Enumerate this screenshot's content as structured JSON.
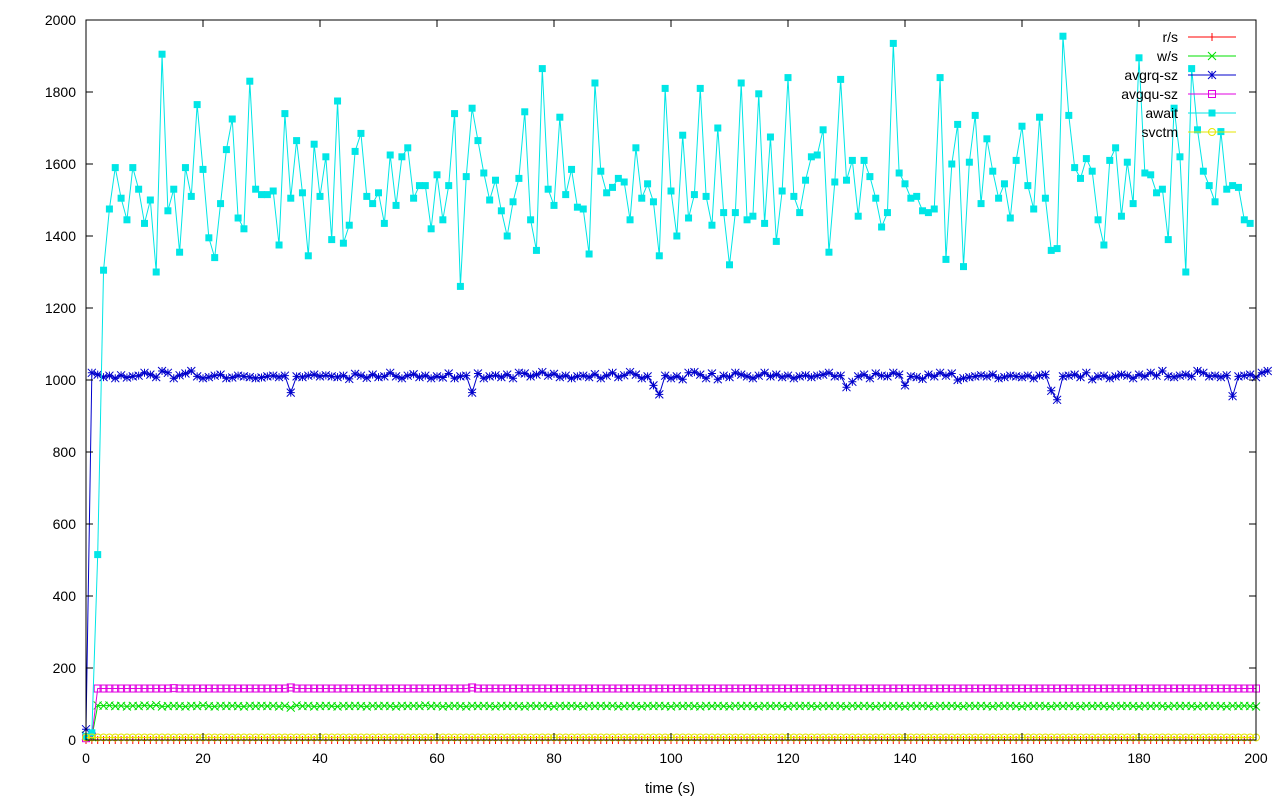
{
  "chart_data": {
    "type": "line",
    "title": "",
    "xlabel": "time (s)",
    "ylabel": "",
    "xlim": [
      0,
      200
    ],
    "ylim": [
      0,
      2000
    ],
    "xticks": [
      0,
      20,
      40,
      60,
      80,
      100,
      120,
      140,
      160,
      180,
      200
    ],
    "yticks": [
      0,
      200,
      400,
      600,
      800,
      1000,
      1200,
      1400,
      1600,
      1800,
      2000
    ],
    "grid": false,
    "legend_position": "top-right",
    "series": [
      {
        "name": "r/s",
        "color": "#ff0000",
        "marker": "plus",
        "start": 0,
        "step": 1,
        "values": [
          0,
          0,
          0,
          0,
          0,
          0,
          0,
          0,
          0,
          0,
          0,
          0,
          0,
          0,
          0,
          0,
          0,
          0,
          0,
          0,
          0,
          0,
          0,
          0,
          0,
          0,
          0,
          0,
          0,
          0,
          0,
          0,
          0,
          0,
          0,
          0,
          0,
          0,
          0,
          0,
          0,
          0,
          0,
          0,
          0,
          0,
          0,
          0,
          0,
          0,
          0,
          0,
          0,
          0,
          0,
          0,
          0,
          0,
          0,
          0,
          0,
          0,
          0,
          0,
          0,
          0,
          0,
          0,
          0,
          0,
          0,
          0,
          0,
          0,
          0,
          0,
          0,
          0,
          0,
          0,
          0,
          0,
          0,
          0,
          0,
          0,
          0,
          0,
          0,
          0,
          0,
          0,
          0,
          0,
          0,
          0,
          0,
          0,
          0,
          0,
          0,
          0,
          0,
          0,
          0,
          0,
          0,
          0,
          0,
          0,
          0,
          0,
          0,
          0,
          0,
          0,
          0,
          0,
          0,
          0,
          0,
          0,
          0,
          0,
          0,
          0,
          0,
          0,
          0,
          0,
          0,
          0,
          0,
          0,
          0,
          0,
          0,
          0,
          0,
          0,
          0,
          0,
          0,
          0,
          0,
          0,
          0,
          0,
          0,
          0,
          0,
          0,
          0,
          0,
          0,
          0,
          0,
          0,
          0,
          0,
          0,
          0,
          0,
          0,
          0,
          0,
          0,
          0,
          0,
          0,
          0,
          0,
          0,
          0,
          0,
          0,
          0,
          0,
          0,
          0,
          0,
          0,
          0,
          0,
          0,
          0,
          0,
          0,
          0,
          0,
          0,
          0,
          0,
          0,
          0,
          0,
          0,
          0,
          0,
          0
        ]
      },
      {
        "name": "w/s",
        "color": "#00e000",
        "marker": "cross",
        "start": 0,
        "step": 1,
        "values": [
          12,
          8,
          96,
          95,
          96,
          94,
          95,
          93,
          95,
          94,
          96,
          94,
          97,
          93,
          94,
          95,
          94,
          93,
          95,
          94,
          96,
          94,
          93,
          95,
          94,
          95,
          94,
          93,
          95,
          94,
          95,
          94,
          95,
          93,
          95,
          90,
          96,
          94,
          95,
          93,
          94,
          95,
          94,
          93,
          95,
          94,
          95,
          94,
          93,
          95,
          94,
          95,
          94,
          93,
          95,
          94,
          95,
          94,
          96,
          94,
          95,
          93,
          94,
          95,
          94,
          93,
          95,
          94,
          95,
          94,
          93,
          95,
          94,
          95,
          94,
          93,
          95,
          94,
          95,
          94,
          93,
          95,
          94,
          95,
          94,
          93,
          95,
          94,
          95,
          94,
          95,
          93,
          94,
          95,
          94,
          93,
          95,
          94,
          95,
          94,
          93,
          95,
          94,
          95,
          94,
          93,
          95,
          94,
          95,
          94,
          93,
          95,
          94,
          95,
          94,
          93,
          95,
          94,
          95,
          94,
          93,
          95,
          94,
          95,
          94,
          93,
          95,
          94,
          95,
          94,
          93,
          95,
          94,
          95,
          94,
          93,
          95,
          94,
          95,
          94,
          93,
          95,
          94,
          95,
          94,
          93,
          95,
          94,
          95,
          94,
          93,
          95,
          94,
          95,
          94,
          93,
          95,
          94,
          95,
          94,
          93,
          95,
          94,
          95,
          94,
          93,
          95,
          94,
          95,
          94,
          93,
          95,
          94,
          95,
          94,
          93,
          95,
          94,
          95,
          94,
          93,
          95,
          94,
          95,
          94,
          93,
          95,
          94,
          95,
          94,
          93,
          95,
          94,
          95,
          94,
          93,
          95,
          94,
          95,
          94,
          93
        ]
      },
      {
        "name": "avgrq-sz",
        "color": "#0000cc",
        "marker": "star",
        "start": 0,
        "step": 1,
        "values": [
          30,
          1020,
          1015,
          1008,
          1012,
          1005,
          1013,
          1007,
          1010,
          1012,
          1020,
          1015,
          1008,
          1025,
          1020,
          1005,
          1013,
          1018,
          1025,
          1010,
          1005,
          1008,
          1012,
          1015,
          1005,
          1007,
          1012,
          1010,
          1008,
          1005,
          1007,
          1010,
          1012,
          1008,
          1012,
          965,
          1010,
          1008,
          1012,
          1015,
          1010,
          1013,
          1010,
          1008,
          1012,
          1003,
          1017,
          1012,
          1006,
          1015,
          1008,
          1010,
          1020,
          1010,
          1005,
          1012,
          1016,
          1008,
          1012,
          1005,
          1010,
          1007,
          1018,
          1005,
          1010,
          1012,
          965,
          1018,
          1005,
          1010,
          1013,
          1008,
          1015,
          1005,
          1020,
          1018,
          1010,
          1015,
          1022,
          1012,
          1017,
          1008,
          1012,
          1005,
          1010,
          1012,
          1008,
          1016,
          1005,
          1012,
          1020,
          1008,
          1013,
          1022,
          1015,
          1005,
          1010,
          985,
          960,
          1012,
          1005,
          1010,
          1002,
          1020,
          1022,
          1015,
          1005,
          1018,
          1002,
          1012,
          1008,
          1020,
          1015,
          1010,
          1005,
          1012,
          1020,
          1010,
          1015,
          1008,
          1012,
          1005,
          1010,
          1013,
          1008,
          1012,
          1015,
          1020,
          1010,
          1012,
          980,
          995,
          1010,
          1015,
          1005,
          1018,
          1012,
          1010,
          1020,
          1015,
          985,
          1010,
          1008,
          1003,
          1015,
          1010,
          1020,
          1012,
          1018,
          1000,
          1005,
          1008,
          1010,
          1013,
          1010,
          1015,
          1005,
          1008,
          1012,
          1010,
          1008,
          1012,
          1005,
          1012,
          1015,
          970,
          945,
          1010,
          1012,
          1015,
          1008,
          1020,
          1002,
          1010,
          1012,
          1005,
          1010,
          1015,
          1012,
          1005,
          1015,
          1010,
          1020,
          1012,
          1025,
          1010,
          1008,
          1012,
          1015,
          1010,
          1025,
          1020,
          1010,
          1012,
          1008,
          1013,
          955,
          1010,
          1012,
          1015,
          1008,
          1020,
          1025
        ]
      },
      {
        "name": "avgqu-sz",
        "color": "#e000e0",
        "marker": "square",
        "start": 0,
        "step": 1,
        "values": [
          5,
          10,
          143,
          143,
          143,
          143,
          143,
          143,
          143,
          143,
          143,
          143,
          143,
          143,
          143,
          144,
          143,
          143,
          143,
          143,
          143,
          143,
          143,
          143,
          143,
          143,
          143,
          143,
          143,
          143,
          143,
          143,
          143,
          143,
          143,
          146,
          143,
          143,
          143,
          143,
          143,
          143,
          143,
          143,
          143,
          143,
          143,
          143,
          143,
          143,
          143,
          143,
          143,
          143,
          143,
          143,
          143,
          143,
          143,
          143,
          143,
          143,
          143,
          143,
          143,
          143,
          146,
          143,
          143,
          143,
          143,
          143,
          143,
          143,
          143,
          143,
          143,
          143,
          143,
          143,
          143,
          143,
          143,
          143,
          143,
          143,
          143,
          143,
          143,
          143,
          143,
          143,
          143,
          143,
          143,
          143,
          143,
          143,
          143,
          143,
          143,
          143,
          143,
          143,
          143,
          143,
          143,
          143,
          143,
          143,
          143,
          143,
          143,
          143,
          143,
          143,
          143,
          143,
          143,
          143,
          143,
          143,
          143,
          143,
          143,
          143,
          143,
          143,
          143,
          143,
          143,
          143,
          143,
          143,
          143,
          143,
          143,
          143,
          143,
          143,
          143,
          143,
          143,
          143,
          143,
          143,
          143,
          143,
          143,
          143,
          143,
          143,
          143,
          143,
          143,
          143,
          143,
          143,
          143,
          143,
          143,
          143,
          143,
          143,
          143,
          143,
          143,
          143,
          143,
          143,
          143,
          143,
          143,
          143,
          143,
          143,
          143,
          143,
          143,
          143,
          143,
          143,
          143,
          143,
          143,
          143,
          143,
          143,
          143,
          143,
          143,
          143,
          143,
          143,
          143,
          143,
          143,
          143,
          143,
          143,
          143
        ]
      },
      {
        "name": "await",
        "color": "#00e6e6",
        "marker": "filled-square",
        "start": 0,
        "step": 1,
        "values": [
          10,
          20,
          515,
          1305,
          1475,
          1590,
          1505,
          1445,
          1590,
          1530,
          1435,
          1500,
          1300,
          1905,
          1470,
          1530,
          1355,
          1590,
          1510,
          1765,
          1585,
          1395,
          1340,
          1490,
          1640,
          1725,
          1450,
          1420,
          1830,
          1530,
          1515,
          1515,
          1525,
          1375,
          1740,
          1505,
          1665,
          1520,
          1345,
          1655,
          1510,
          1620,
          1390,
          1775,
          1380,
          1430,
          1635,
          1685,
          1510,
          1490,
          1520,
          1435,
          1625,
          1485,
          1620,
          1645,
          1505,
          1540,
          1540,
          1420,
          1570,
          1445,
          1540,
          1740,
          1260,
          1565,
          1755,
          1665,
          1575,
          1500,
          1555,
          1470,
          1400,
          1495,
          1560,
          1745,
          1445,
          1360,
          1865,
          1530,
          1485,
          1730,
          1515,
          1585,
          1480,
          1475,
          1350,
          1825,
          1580,
          1520,
          1535,
          1560,
          1550,
          1445,
          1645,
          1505,
          1545,
          1495,
          1345,
          1810,
          1525,
          1400,
          1680,
          1450,
          1515,
          1810,
          1510,
          1430,
          1700,
          1465,
          1320,
          1465,
          1825,
          1445,
          1455,
          1795,
          1435,
          1675,
          1385,
          1525,
          1840,
          1510,
          1465,
          1555,
          1620,
          1625,
          1695,
          1355,
          1550,
          1835,
          1555,
          1610,
          1455,
          1610,
          1565,
          1505,
          1425,
          1465,
          1935,
          1575,
          1545,
          1505,
          1510,
          1470,
          1465,
          1475,
          1840,
          1335,
          1600,
          1710,
          1315,
          1605,
          1735,
          1490,
          1670,
          1580,
          1505,
          1545,
          1450,
          1610,
          1705,
          1540,
          1475,
          1730,
          1505,
          1360,
          1365,
          1955,
          1735,
          1590,
          1560,
          1615,
          1580,
          1445,
          1375,
          1610,
          1645,
          1455,
          1605,
          1490,
          1895,
          1575,
          1570,
          1520,
          1530,
          1390,
          1755,
          1620,
          1300,
          1865,
          1695,
          1580,
          1540,
          1495,
          1690,
          1530,
          1540,
          1535,
          1445,
          1435
        ]
      },
      {
        "name": "svctm",
        "color": "#e6e600",
        "marker": "circle",
        "start": 0,
        "step": 1,
        "values": [
          7,
          7,
          7,
          7,
          7,
          7,
          7,
          7,
          7,
          7,
          7,
          7,
          7,
          7,
          7,
          7,
          7,
          7,
          7,
          7,
          7,
          7,
          7,
          7,
          7,
          7,
          7,
          7,
          7,
          7,
          7,
          7,
          7,
          7,
          7,
          7,
          7,
          7,
          7,
          7,
          7,
          7,
          7,
          7,
          7,
          7,
          7,
          7,
          7,
          7,
          7,
          7,
          7,
          7,
          7,
          7,
          7,
          7,
          7,
          7,
          7,
          7,
          7,
          7,
          7,
          7,
          7,
          7,
          7,
          7,
          7,
          7,
          7,
          7,
          7,
          7,
          7,
          7,
          7,
          7,
          7,
          7,
          7,
          7,
          7,
          7,
          7,
          7,
          7,
          7,
          7,
          7,
          7,
          7,
          7,
          7,
          7,
          7,
          7,
          7,
          7,
          7,
          7,
          7,
          7,
          7,
          7,
          7,
          7,
          7,
          7,
          7,
          7,
          7,
          7,
          7,
          7,
          7,
          7,
          7,
          7,
          7,
          7,
          7,
          7,
          7,
          7,
          7,
          7,
          7,
          7,
          7,
          7,
          7,
          7,
          7,
          7,
          7,
          7,
          7,
          7,
          7,
          7,
          7,
          7,
          7,
          7,
          7,
          7,
          7,
          7,
          7,
          7,
          7,
          7,
          7,
          7,
          7,
          7,
          7,
          7,
          7,
          7,
          7,
          7,
          7,
          7,
          7,
          7,
          7,
          7,
          7,
          7,
          7,
          7,
          7,
          7,
          7,
          7,
          7,
          7,
          7,
          7,
          7,
          7,
          7,
          7,
          7,
          7,
          7,
          7,
          7,
          7,
          7,
          7,
          7,
          7,
          7,
          7,
          7,
          7
        ]
      }
    ]
  }
}
